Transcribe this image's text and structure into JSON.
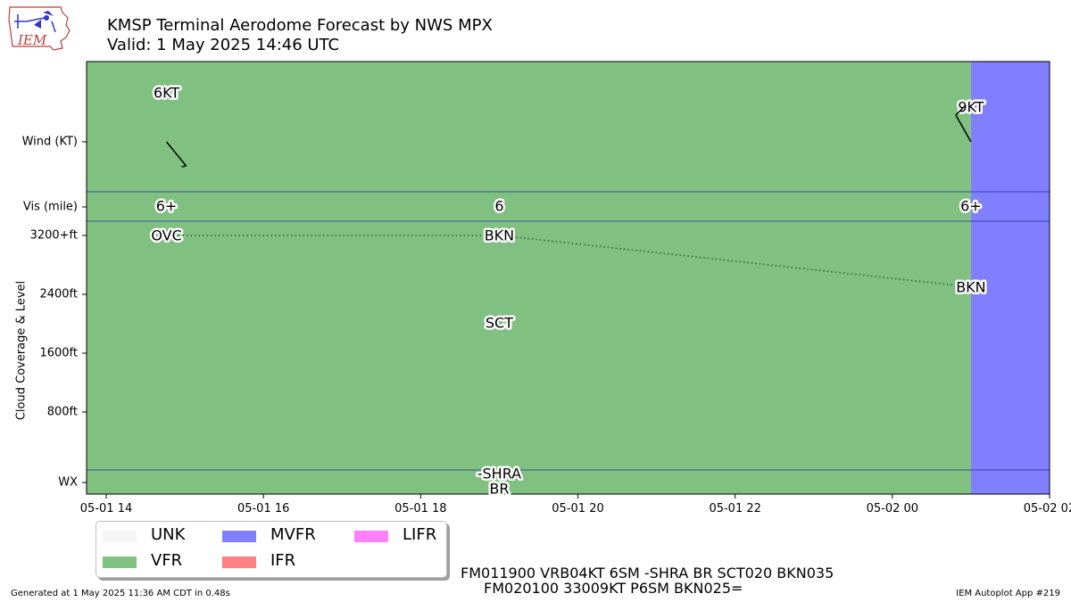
{
  "title": {
    "line1": "KMSP Terminal Aerodome Forecast by NWS MPX",
    "line2": "Valid: 1 May 2025 14:46 UTC"
  },
  "logo": {
    "text": "IEM"
  },
  "chart_data": {
    "type": "timeline",
    "x_start": "2025-05-01 13:45",
    "x_end": "2025-05-02 02:00",
    "x_ticks": [
      "05-01 14",
      "05-01 16",
      "05-01 18",
      "05-01 20",
      "05-01 22",
      "05-02 00",
      "05-02 02"
    ],
    "row_labels": {
      "wind": "Wind (KT)",
      "vis": "Vis (mile)",
      "wx": "WX"
    },
    "cloud_axis": {
      "ylabel": "Cloud Coverage & Level",
      "ticks": [
        "800ft",
        "1600ft",
        "2400ft",
        "3200+ft"
      ],
      "tick_values": [
        800,
        1600,
        2400,
        3200
      ],
      "ylim": [
        -700,
        3200
      ]
    },
    "categories": [
      {
        "start": "2025-05-01 13:45",
        "end": "2025-05-02 01:00",
        "category": "VFR",
        "color": "#80c080"
      },
      {
        "start": "2025-05-02 01:00",
        "end": "2025-05-02 02:00",
        "category": "MVFR",
        "color": "#8080ff"
      }
    ],
    "winds": [
      {
        "time": "2025-05-01 14:46",
        "label": "6KT",
        "direction": 315,
        "speed": 6
      },
      {
        "time": "2025-05-02 01:00",
        "label": "9KT",
        "direction": 330,
        "speed": 9
      }
    ],
    "visibility": [
      {
        "time": "2025-05-01 14:46",
        "label": "6+"
      },
      {
        "time": "2025-05-01 19:00",
        "label": "6"
      },
      {
        "time": "2025-05-02 01:00",
        "label": "6+"
      }
    ],
    "clouds": [
      {
        "time": "2025-05-01 14:46",
        "label": "OVC",
        "level": 3200
      },
      {
        "time": "2025-05-01 19:00",
        "label": "BKN",
        "level": 3200
      },
      {
        "time": "2025-05-01 19:00",
        "label": "SCT",
        "level": 2000
      },
      {
        "time": "2025-05-02 01:00",
        "label": "BKN",
        "level": 2500
      }
    ],
    "cloud_trace": [
      {
        "time": "2025-05-01 14:46",
        "level": 3200
      },
      {
        "time": "2025-05-01 19:00",
        "level": 3200
      },
      {
        "time": "2025-05-02 01:00",
        "level": 2500
      }
    ],
    "weather": [
      {
        "time": "2025-05-01 19:00",
        "lines": [
          "-SHRA",
          "BR"
        ]
      }
    ]
  },
  "legend": [
    {
      "label": "UNK",
      "color": "#f5f5f5"
    },
    {
      "label": "VFR",
      "color": "#80c080"
    },
    {
      "label": "MVFR",
      "color": "#8080ff"
    },
    {
      "label": "IFR",
      "color": "#ff8080"
    },
    {
      "label": "LIFR",
      "color": "#ff80ff"
    }
  ],
  "taf_text": {
    "line1": "FM011900 VRB04KT 6SM -SHRA BR SCT020 BKN035",
    "line2": "FM020100 33009KT P6SM BKN025="
  },
  "footer": {
    "left": "Generated at 1 May 2025 11:36 AM CDT in 0.48s",
    "right": "IEM Autoplot App #219"
  }
}
